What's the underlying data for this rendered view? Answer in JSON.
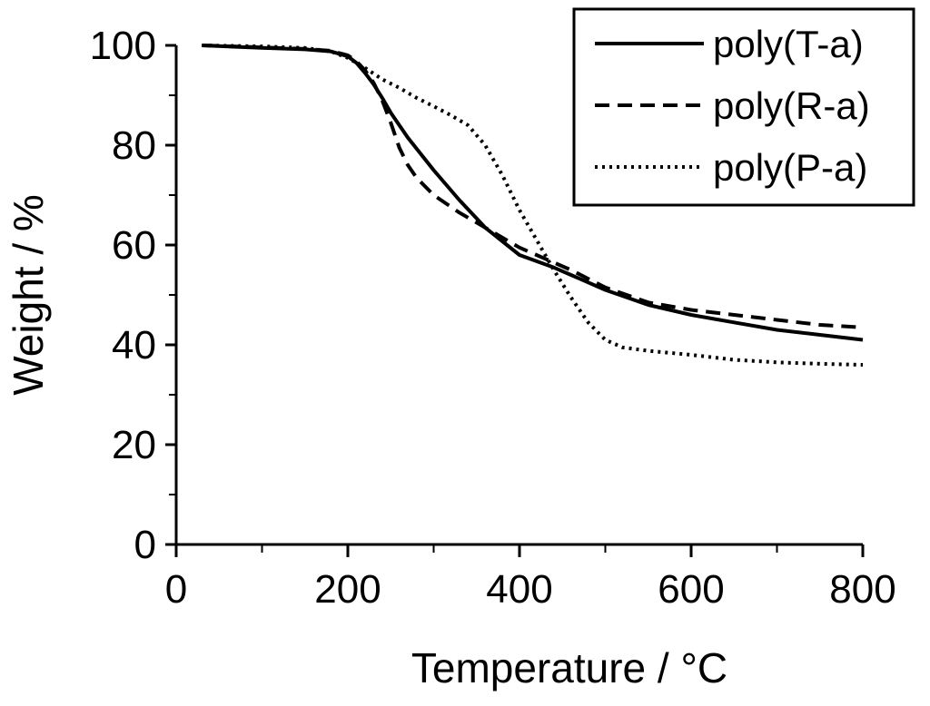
{
  "chart_data": {
    "type": "line",
    "title": "",
    "xlabel": "Temperature / °C",
    "ylabel": "Weight / %",
    "xlim": [
      0,
      800
    ],
    "ylim": [
      0,
      100
    ],
    "x_ticks": [
      0,
      200,
      400,
      600,
      800
    ],
    "y_ticks": [
      0,
      20,
      40,
      60,
      80,
      100
    ],
    "x_tick_labels": [
      "0",
      "200",
      "400",
      "600",
      "800"
    ],
    "y_tick_labels": [
      "0",
      "20",
      "40",
      "60",
      "80",
      "100"
    ],
    "grid": false,
    "legend_position": "top-right",
    "series": [
      {
        "name": "poly(T-a)",
        "line_style": "solid",
        "color": "#000000",
        "x": [
          30,
          100,
          150,
          180,
          200,
          210,
          220,
          230,
          240,
          250,
          270,
          300,
          330,
          360,
          400,
          440,
          460,
          500,
          550,
          600,
          650,
          700,
          750,
          800
        ],
        "y": [
          100,
          99.5,
          99.2,
          98.8,
          97.8,
          96.5,
          94.5,
          92.2,
          89.5,
          86.5,
          81.5,
          75,
          69,
          63.5,
          58,
          55.5,
          54,
          51,
          48,
          46,
          44.5,
          43,
          42,
          41
        ]
      },
      {
        "name": "poly(R-a)",
        "line_style": "dashed",
        "color": "#000000",
        "x": [
          30,
          100,
          150,
          180,
          200,
          210,
          220,
          230,
          240,
          250,
          260,
          270,
          280,
          300,
          330,
          360,
          400,
          440,
          460,
          500,
          550,
          600,
          650,
          700,
          750,
          800
        ],
        "y": [
          100,
          99.6,
          99.3,
          98.9,
          98,
          96.8,
          95,
          92.5,
          89,
          84.5,
          79.5,
          76,
          73.5,
          70,
          66.5,
          63.5,
          59.5,
          56.5,
          55,
          51.5,
          48.5,
          47,
          46,
          45,
          44,
          43.5
        ]
      },
      {
        "name": "poly(P-a)",
        "line_style": "dotted",
        "color": "#000000",
        "x": [
          30,
          100,
          150,
          180,
          200,
          220,
          240,
          260,
          280,
          300,
          320,
          340,
          360,
          380,
          400,
          420,
          440,
          460,
          480,
          500,
          520,
          550,
          600,
          650,
          700,
          750,
          800
        ],
        "y": [
          100,
          99.8,
          99.5,
          98.8,
          97.5,
          95.5,
          93.2,
          91.5,
          89.5,
          87.8,
          86,
          84,
          80,
          74,
          67,
          61,
          55,
          49.5,
          44.5,
          41,
          39.5,
          38.8,
          38,
          37,
          36.5,
          36.2,
          36
        ]
      }
    ]
  }
}
